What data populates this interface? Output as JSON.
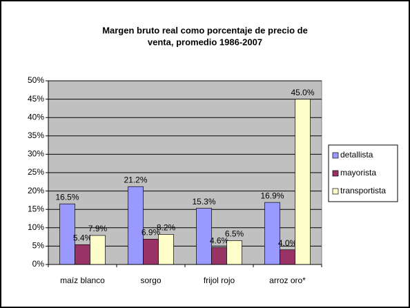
{
  "chart_data": {
    "type": "bar",
    "title": [
      "Margen bruto real como porcentaje de precio de",
      "venta, promedio 1986-2007"
    ],
    "categories": [
      "maíz blanco",
      "sorgo",
      "frijol rojo",
      "arroz oro*"
    ],
    "series": [
      {
        "name": "detallista",
        "color": "#9999ff",
        "values": [
          16.5,
          21.2,
          15.3,
          16.9
        ],
        "value_labels": [
          "16.5%",
          "21.2%",
          "15.3%",
          "16.9%"
        ]
      },
      {
        "name": "mayorista",
        "color": "#993366",
        "values": [
          5.4,
          6.9,
          4.6,
          4.0
        ],
        "value_labels": [
          "5.4%",
          "6.9%",
          "4.6%",
          "4.0%"
        ]
      },
      {
        "name": "transportista",
        "color": "#ffffcc",
        "values": [
          7.9,
          8.2,
          6.5,
          45.0
        ],
        "value_labels": [
          "7.9%",
          "8.2%",
          "6.5%",
          "45.0%"
        ]
      }
    ],
    "ylim": [
      0,
      50
    ],
    "yticks": [
      {
        "value": 0,
        "label": "0%"
      },
      {
        "value": 5,
        "label": "5%"
      },
      {
        "value": 10,
        "label": "10%"
      },
      {
        "value": 15,
        "label": "15%"
      },
      {
        "value": 20,
        "label": "20%"
      },
      {
        "value": 25,
        "label": "25%"
      },
      {
        "value": 30,
        "label": "30%"
      },
      {
        "value": 35,
        "label": "35%"
      },
      {
        "value": 40,
        "label": "40%"
      },
      {
        "value": 45,
        "label": "45%"
      },
      {
        "value": 50,
        "label": "50%"
      }
    ],
    "grid": true,
    "legend": "right",
    "plot_background": "#c0c0c0"
  }
}
